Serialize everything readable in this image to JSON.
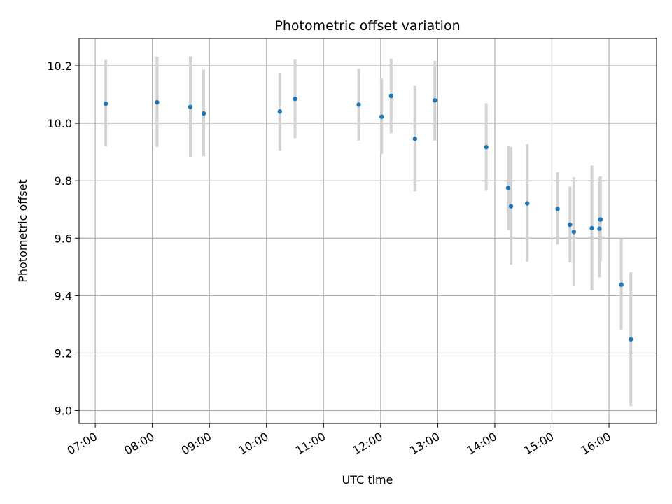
{
  "chart_data": {
    "type": "scatter",
    "title": "Photometric offset variation",
    "xlabel": "UTC time",
    "ylabel": "Photometric offset",
    "x_ticks": [
      "07:00",
      "08:00",
      "09:00",
      "10:00",
      "11:00",
      "12:00",
      "13:00",
      "14:00",
      "15:00",
      "16:00"
    ],
    "y_ticks": [
      "9.0",
      "9.2",
      "9.4",
      "9.6",
      "9.8",
      "10.0",
      "10.2"
    ],
    "xlim": [
      "06:43",
      "16:50"
    ],
    "ylim": [
      8.955,
      10.295
    ],
    "grid": true,
    "legend": "none",
    "colors": {
      "point": "#1f77b4",
      "errorbar": "#d3d3d3",
      "grid": "#b0b0b0",
      "axes": "#000000"
    },
    "points": [
      {
        "x": "07:11",
        "y": 10.068,
        "err_low": 9.92,
        "err_high": 10.22
      },
      {
        "x": "08:05",
        "y": 10.073,
        "err_low": 9.918,
        "err_high": 10.232
      },
      {
        "x": "08:40",
        "y": 10.057,
        "err_low": 9.883,
        "err_high": 10.233
      },
      {
        "x": "08:54",
        "y": 10.034,
        "err_low": 9.885,
        "err_high": 10.187
      },
      {
        "x": "10:14",
        "y": 10.041,
        "err_low": 9.905,
        "err_high": 10.176
      },
      {
        "x": "10:30",
        "y": 10.085,
        "err_low": 9.948,
        "err_high": 10.222
      },
      {
        "x": "11:37",
        "y": 10.065,
        "err_low": 9.94,
        "err_high": 10.19
      },
      {
        "x": "12:01",
        "y": 10.023,
        "err_low": 9.893,
        "err_high": 10.155
      },
      {
        "x": "12:11",
        "y": 10.095,
        "err_low": 9.965,
        "err_high": 10.225
      },
      {
        "x": "12:36",
        "y": 9.946,
        "err_low": 9.763,
        "err_high": 10.13
      },
      {
        "x": "12:57",
        "y": 10.08,
        "err_low": 9.94,
        "err_high": 10.217
      },
      {
        "x": "13:51",
        "y": 9.917,
        "err_low": 9.765,
        "err_high": 10.07
      },
      {
        "x": "14:14",
        "y": 9.775,
        "err_low": 9.628,
        "err_high": 9.922
      },
      {
        "x": "14:17",
        "y": 9.711,
        "err_low": 9.508,
        "err_high": 9.918
      },
      {
        "x": "14:34",
        "y": 9.721,
        "err_low": 9.518,
        "err_high": 9.928
      },
      {
        "x": "15:06",
        "y": 9.702,
        "err_low": 9.578,
        "err_high": 9.83
      },
      {
        "x": "15:19",
        "y": 9.647,
        "err_low": 9.515,
        "err_high": 9.78
      },
      {
        "x": "15:23",
        "y": 9.622,
        "err_low": 9.435,
        "err_high": 9.812
      },
      {
        "x": "15:42",
        "y": 9.635,
        "err_low": 9.418,
        "err_high": 9.853
      },
      {
        "x": "15:50",
        "y": 9.633,
        "err_low": 9.463,
        "err_high": 9.812
      },
      {
        "x": "15:51",
        "y": 9.665,
        "err_low": 9.52,
        "err_high": 9.815
      },
      {
        "x": "16:13",
        "y": 9.438,
        "err_low": 9.28,
        "err_high": 9.6
      },
      {
        "x": "16:23",
        "y": 9.248,
        "err_low": 9.015,
        "err_high": 9.482
      }
    ]
  }
}
